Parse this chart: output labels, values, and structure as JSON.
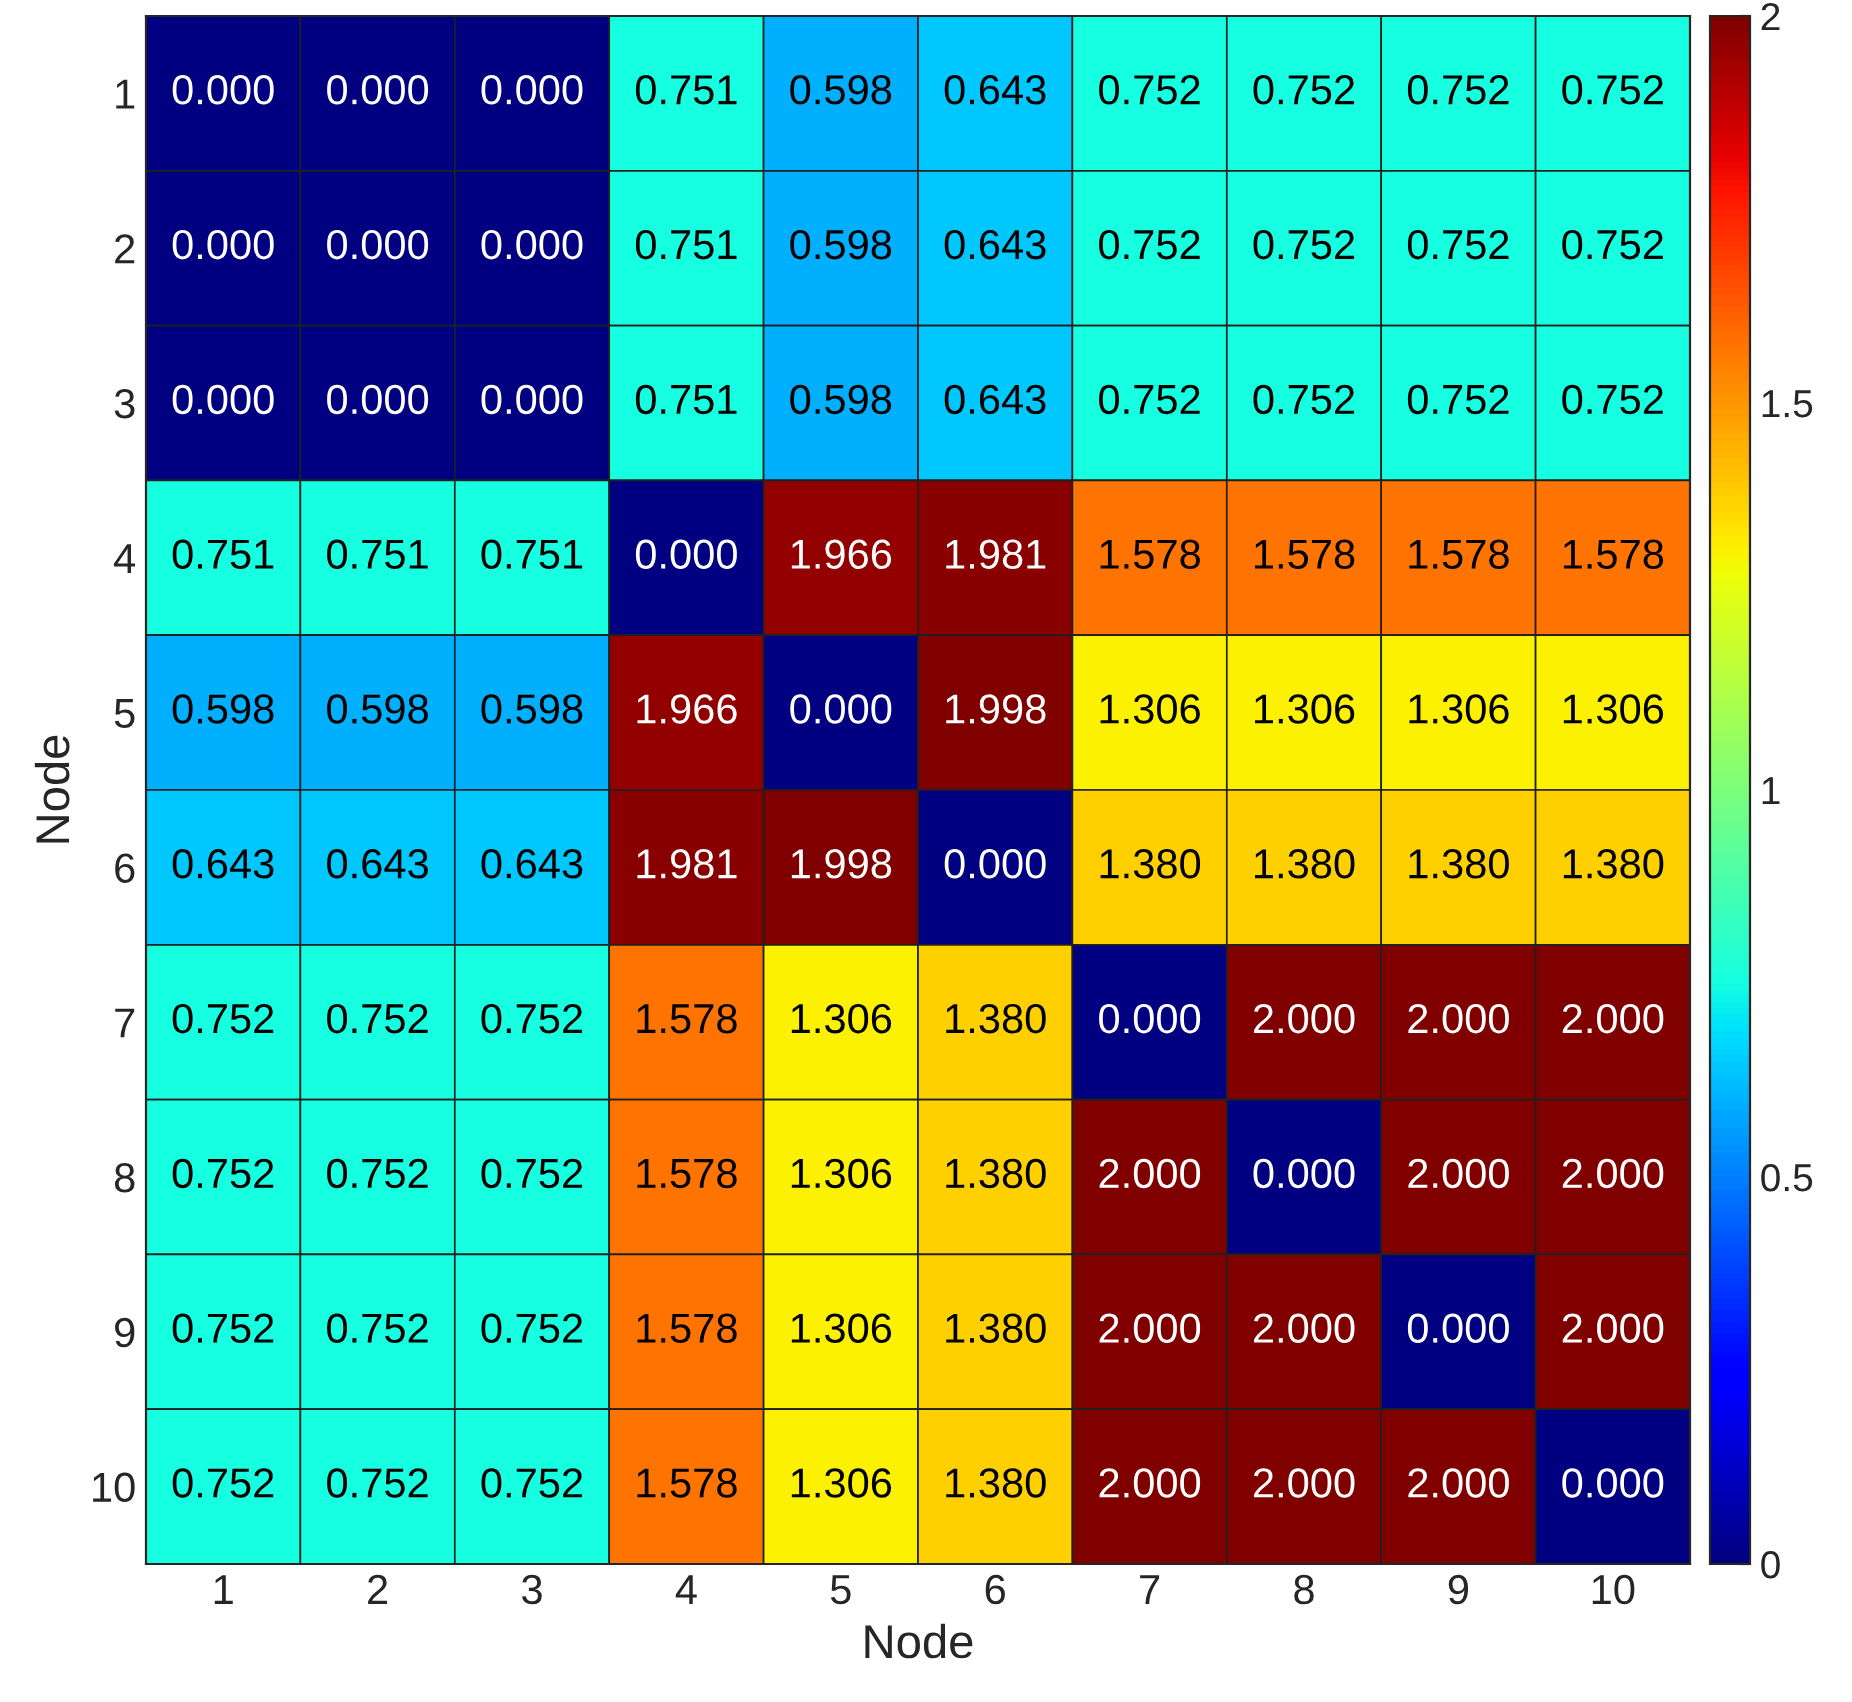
{
  "chart_data": {
    "type": "heatmap",
    "xlabel": "Node",
    "ylabel": "Node",
    "categories": [
      "1",
      "2",
      "3",
      "4",
      "5",
      "6",
      "7",
      "8",
      "9",
      "10"
    ],
    "y_categories": [
      "1",
      "2",
      "3",
      "4",
      "5",
      "6",
      "7",
      "8",
      "9",
      "10"
    ],
    "cells": [
      [
        0.0,
        0.0,
        0.0,
        0.751,
        0.598,
        0.643,
        0.752,
        0.752,
        0.752,
        0.752
      ],
      [
        0.0,
        0.0,
        0.0,
        0.751,
        0.598,
        0.643,
        0.752,
        0.752,
        0.752,
        0.752
      ],
      [
        0.0,
        0.0,
        0.0,
        0.751,
        0.598,
        0.643,
        0.752,
        0.752,
        0.752,
        0.752
      ],
      [
        0.751,
        0.751,
        0.751,
        0.0,
        1.966,
        1.981,
        1.578,
        1.578,
        1.578,
        1.578
      ],
      [
        0.598,
        0.598,
        0.598,
        1.966,
        0.0,
        1.998,
        1.306,
        1.306,
        1.306,
        1.306
      ],
      [
        0.643,
        0.643,
        0.643,
        1.981,
        1.998,
        0.0,
        1.38,
        1.38,
        1.38,
        1.38
      ],
      [
        0.752,
        0.752,
        0.752,
        1.578,
        1.306,
        1.38,
        0.0,
        2.0,
        2.0,
        2.0
      ],
      [
        0.752,
        0.752,
        0.752,
        1.578,
        1.306,
        1.38,
        2.0,
        0.0,
        2.0,
        2.0
      ],
      [
        0.752,
        0.752,
        0.752,
        1.578,
        1.306,
        1.38,
        2.0,
        2.0,
        0.0,
        2.0
      ],
      [
        0.752,
        0.752,
        0.752,
        1.578,
        1.306,
        1.38,
        2.0,
        2.0,
        2.0,
        0.0
      ]
    ],
    "cell_labels": [
      [
        "0.000",
        "0.000",
        "0.000",
        "0.751",
        "0.598",
        "0.643",
        "0.752",
        "0.752",
        "0.752",
        "0.752"
      ],
      [
        "0.000",
        "0.000",
        "0.000",
        "0.751",
        "0.598",
        "0.643",
        "0.752",
        "0.752",
        "0.752",
        "0.752"
      ],
      [
        "0.000",
        "0.000",
        "0.000",
        "0.751",
        "0.598",
        "0.643",
        "0.752",
        "0.752",
        "0.752",
        "0.752"
      ],
      [
        "0.751",
        "0.751",
        "0.751",
        "0.000",
        "1.966",
        "1.981",
        "1.578",
        "1.578",
        "1.578",
        "1.578"
      ],
      [
        "0.598",
        "0.598",
        "0.598",
        "1.966",
        "0.000",
        "1.998",
        "1.306",
        "1.306",
        "1.306",
        "1.306"
      ],
      [
        "0.643",
        "0.643",
        "0.643",
        "1.981",
        "1.998",
        "0.000",
        "1.380",
        "1.380",
        "1.380",
        "1.380"
      ],
      [
        "0.752",
        "0.752",
        "0.752",
        "1.578",
        "1.306",
        "1.380",
        "0.000",
        "2.000",
        "2.000",
        "2.000"
      ],
      [
        "0.752",
        "0.752",
        "0.752",
        "1.578",
        "1.306",
        "1.380",
        "2.000",
        "0.000",
        "2.000",
        "2.000"
      ],
      [
        "0.752",
        "0.752",
        "0.752",
        "1.578",
        "1.306",
        "1.380",
        "2.000",
        "2.000",
        "0.000",
        "2.000"
      ],
      [
        "0.752",
        "0.752",
        "0.752",
        "1.578",
        "1.306",
        "1.380",
        "2.000",
        "2.000",
        "2.000",
        "0.000"
      ]
    ],
    "clim": [
      0,
      2
    ],
    "cticks": [
      0,
      0.5,
      1,
      1.5,
      2
    ]
  }
}
